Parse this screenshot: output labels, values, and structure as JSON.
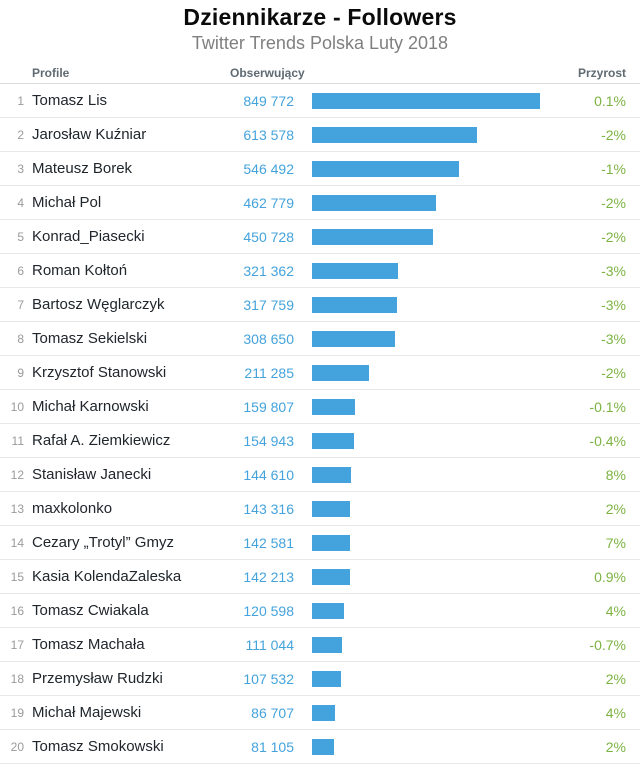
{
  "header": {
    "title": "Dziennikarze - Followers",
    "subtitle": "Twitter Trends Polska Luty 2018"
  },
  "columns": {
    "profile": "Profile",
    "followers": "Obserwujący",
    "growth": "Przyrost"
  },
  "colors": {
    "bar": "#44a3dc",
    "followers_text": "#44a3dc",
    "growth_text": "#7cb342",
    "name_text": "#20262b",
    "rank_text": "#9a9a9a"
  },
  "rows": [
    {
      "rank": "1",
      "name": "Tomasz Lis",
      "followers": "849 772",
      "value": 849772,
      "growth": "0.1%"
    },
    {
      "rank": "2",
      "name": "Jarosław Kuźniar",
      "followers": "613 578",
      "value": 613578,
      "growth": "-2%"
    },
    {
      "rank": "3",
      "name": "Mateusz Borek",
      "followers": "546 492",
      "value": 546492,
      "growth": "-1%"
    },
    {
      "rank": "4",
      "name": "Michał Pol",
      "followers": "462 779",
      "value": 462779,
      "growth": "-2%"
    },
    {
      "rank": "5",
      "name": "Konrad_Piasecki",
      "followers": "450 728",
      "value": 450728,
      "growth": "-2%"
    },
    {
      "rank": "6",
      "name": "Roman Kołtoń",
      "followers": "321 362",
      "value": 321362,
      "growth": "-3%"
    },
    {
      "rank": "7",
      "name": "Bartosz Węglarczyk",
      "followers": "317 759",
      "value": 317759,
      "growth": "-3%"
    },
    {
      "rank": "8",
      "name": "Tomasz Sekielski",
      "followers": "308 650",
      "value": 308650,
      "growth": "-3%"
    },
    {
      "rank": "9",
      "name": "Krzysztof Stanowski",
      "followers": "211 285",
      "value": 211285,
      "growth": "-2%"
    },
    {
      "rank": "10",
      "name": "Michał Karnowski",
      "followers": "159 807",
      "value": 159807,
      "growth": "-0.1%"
    },
    {
      "rank": "11",
      "name": "Rafał A. Ziemkiewicz",
      "followers": "154 943",
      "value": 154943,
      "growth": "-0.4%"
    },
    {
      "rank": "12",
      "name": "Stanisław Janecki",
      "followers": "144 610",
      "value": 144610,
      "growth": "8%"
    },
    {
      "rank": "13",
      "name": "maxkolonko",
      "followers": "143 316",
      "value": 143316,
      "growth": "2%"
    },
    {
      "rank": "14",
      "name": "Cezary „Trotyl” Gmyz",
      "followers": "142 581",
      "value": 142581,
      "growth": "7%"
    },
    {
      "rank": "15",
      "name": "Kasia KolendaZaleska",
      "followers": "142 213",
      "value": 142213,
      "growth": "0.9%"
    },
    {
      "rank": "16",
      "name": "Tomasz Cwiakala",
      "followers": "120 598",
      "value": 120598,
      "growth": "4%"
    },
    {
      "rank": "17",
      "name": "Tomasz Machała",
      "followers": "111 044",
      "value": 111044,
      "growth": "-0.7%"
    },
    {
      "rank": "18",
      "name": "Przemysław Rudzki",
      "followers": "107 532",
      "value": 107532,
      "growth": "2%"
    },
    {
      "rank": "19",
      "name": "Michał Majewski",
      "followers": "86 707",
      "value": 86707,
      "growth": "4%"
    },
    {
      "rank": "20",
      "name": "Tomasz Smokowski",
      "followers": "81 105",
      "value": 81105,
      "growth": "2%"
    }
  ],
  "chart_data": {
    "type": "bar",
    "title": "Dziennikarze - Followers",
    "subtitle": "Twitter Trends Polska Luty 2018",
    "orientation": "horizontal",
    "categories": [
      "Tomasz Lis",
      "Jarosław Kuźniar",
      "Mateusz Borek",
      "Michał Pol",
      "Konrad_Piasecki",
      "Roman Kołtoń",
      "Bartosz Węglarczyk",
      "Tomasz Sekielski",
      "Krzysztof Stanowski",
      "Michał Karnowski",
      "Rafał A. Ziemkiewicz",
      "Stanisław Janecki",
      "maxkolonko",
      "Cezary „Trotyl” Gmyz",
      "Kasia KolendaZaleska",
      "Tomasz Cwiakala",
      "Tomasz Machała",
      "Przemysław Rudzki",
      "Michał Majewski",
      "Tomasz Smokowski"
    ],
    "series": [
      {
        "name": "Obserwujący",
        "values": [
          849772,
          613578,
          546492,
          462779,
          450728,
          321362,
          317759,
          308650,
          211285,
          159807,
          154943,
          144610,
          143316,
          142581,
          142213,
          120598,
          111044,
          107532,
          86707,
          81105
        ]
      },
      {
        "name": "Przyrost",
        "values": [
          "0.1%",
          "-2%",
          "-1%",
          "-2%",
          "-2%",
          "-3%",
          "-3%",
          "-3%",
          "-2%",
          "-0.1%",
          "-0.4%",
          "8%",
          "2%",
          "7%",
          "0.9%",
          "4%",
          "-0.7%",
          "2%",
          "4%",
          "2%"
        ]
      }
    ],
    "xlim": [
      0,
      849772
    ],
    "max_value": 849772,
    "grid": false,
    "legend": "none"
  }
}
